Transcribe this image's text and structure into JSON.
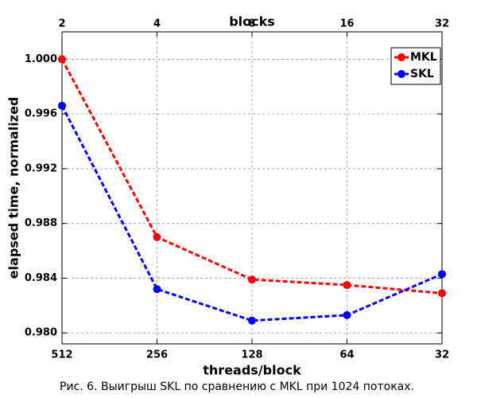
{
  "chart_data": {
    "type": "line",
    "caption": "Рис. 6. Выигрыш SKL по сравнению с MKL при 1024 потоках.",
    "x_label": "threads/block",
    "top_label": "blocks",
    "y_label": "elapsed time, normalized",
    "categories": [
      "512",
      "256",
      "128",
      "64",
      "32"
    ],
    "top_categories": [
      "2",
      "4",
      "8",
      "16",
      "32"
    ],
    "series": [
      {
        "name": "MKL",
        "color": "#ff0000",
        "values": [
          1.0,
          0.987,
          0.9839,
          0.9835,
          0.9829
        ]
      },
      {
        "name": "SKL",
        "color": "#0000ff",
        "values": [
          0.9966,
          0.9832,
          0.9809,
          0.9813,
          0.9843
        ]
      }
    ],
    "ylim": [
      0.9792,
      1.002
    ],
    "yticks": [
      {
        "value": 0.98,
        "label": "0.980"
      },
      0.984,
      0.988,
      0.992,
      0.996,
      {
        "value": 1,
        "label": "1.000"
      }
    ],
    "grid": true,
    "legend": "top-right"
  }
}
